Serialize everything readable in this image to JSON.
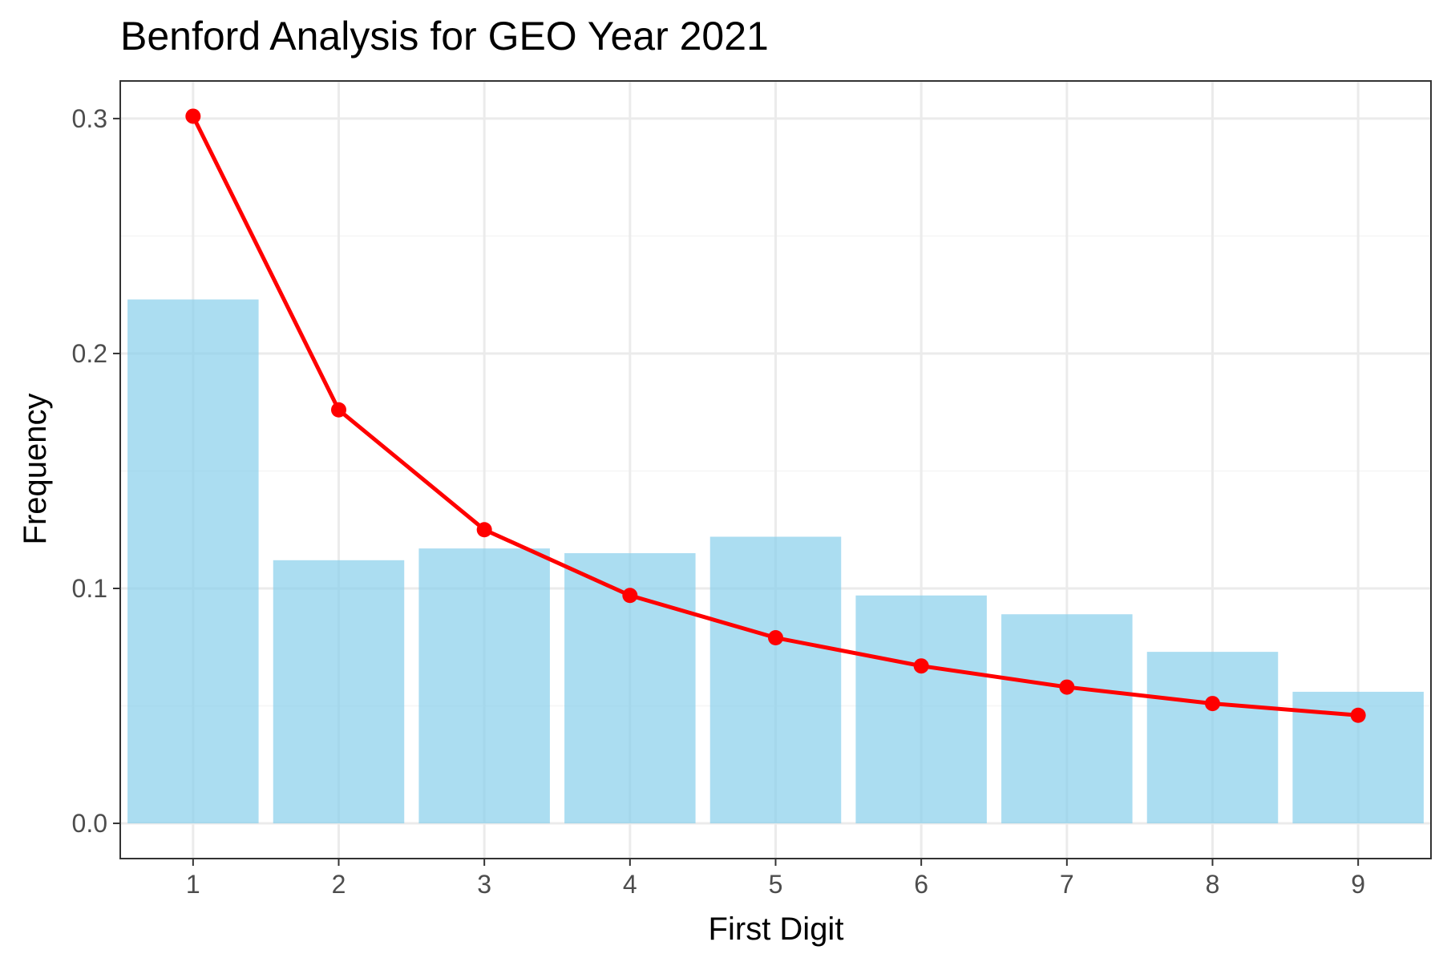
{
  "chart_data": {
    "type": "bar",
    "title": "Benford Analysis for GEO Year 2021",
    "xlabel": "First Digit",
    "ylabel": "Frequency",
    "categories": [
      "1",
      "2",
      "3",
      "4",
      "5",
      "6",
      "7",
      "8",
      "9"
    ],
    "series": [
      {
        "type": "bar",
        "values": [
          0.223,
          0.112,
          0.117,
          0.115,
          0.122,
          0.097,
          0.089,
          0.073,
          0.056
        ],
        "color": "#87CEEB"
      },
      {
        "type": "line",
        "values": [
          0.301,
          0.176,
          0.125,
          0.097,
          0.079,
          0.067,
          0.058,
          0.051,
          0.046
        ],
        "color": "#FF0000"
      }
    ],
    "ylim": [
      -0.015,
      0.316
    ],
    "yticks": [
      0.0,
      0.1,
      0.2,
      0.3
    ],
    "ytick_labels": [
      "0.0",
      "0.1",
      "0.2",
      "0.3"
    ],
    "grid": true,
    "legend": "none",
    "colors": {
      "panel_border": "#333333",
      "grid_major": "#ebebeb",
      "grid_minor": "#f5f5f5"
    }
  }
}
